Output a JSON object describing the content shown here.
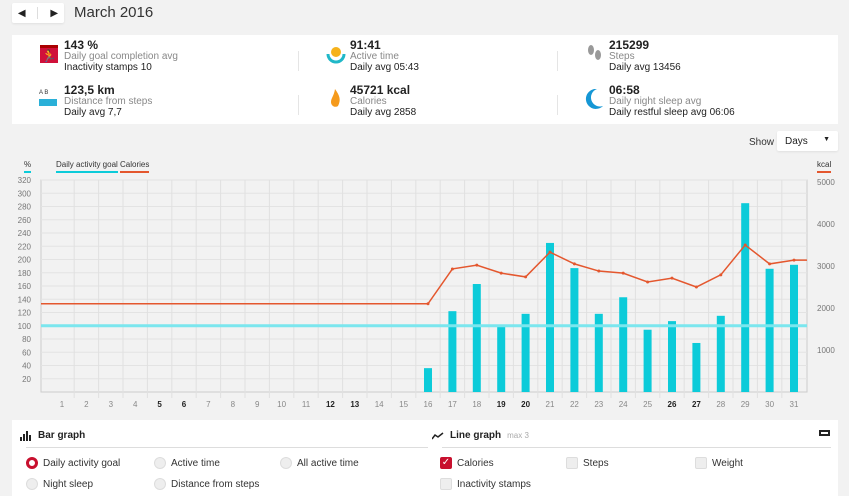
{
  "header": {
    "prev_icon": "◀",
    "next_icon": "▶",
    "month": "March 2016"
  },
  "stats": [
    {
      "icon": "running-calendar-icon",
      "value": "143 %",
      "label": "Daily goal completion avg",
      "detail": "Inactivity stamps 10"
    },
    {
      "icon": "sun-icon",
      "value": "91:41",
      "label": "Active time",
      "detail": "Daily avg 05:43"
    },
    {
      "icon": "footprints-icon",
      "value": "215299",
      "label": "Steps",
      "detail": "Daily avg 13456"
    },
    {
      "icon": "ruler-icon",
      "value": "123,5 km",
      "label": "Distance from steps",
      "detail": "Daily avg 7,7"
    },
    {
      "icon": "flame-icon",
      "value": "45721 kcal",
      "label": "Calories",
      "detail": "Daily avg 2858"
    },
    {
      "icon": "moon-icon",
      "value": "06:58",
      "label": "Daily night sleep avg",
      "detail": "Daily restful sleep avg 06:06"
    }
  ],
  "show": {
    "label": "Show",
    "selected": "Days"
  },
  "chart_data": {
    "type": "bar",
    "left_unit": "%",
    "right_unit": "kcal",
    "legend": [
      "Daily activity goal",
      "Calories"
    ],
    "colors": {
      "bar": "#0ccbd9",
      "goal": "#7be6ee",
      "calories": "#e4572e"
    },
    "categories": [
      1,
      2,
      3,
      4,
      5,
      6,
      7,
      8,
      9,
      10,
      11,
      12,
      13,
      14,
      15,
      16,
      17,
      18,
      19,
      20,
      21,
      22,
      23,
      24,
      25,
      26,
      27,
      28,
      29,
      30,
      31
    ],
    "bold_days": [
      5,
      6,
      12,
      13,
      19,
      20,
      26,
      27
    ],
    "yticks_left": [
      20,
      40,
      60,
      80,
      100,
      120,
      140,
      160,
      180,
      200,
      220,
      240,
      260,
      280,
      300,
      320
    ],
    "yticks_right": [
      1000,
      2000,
      3000,
      4000,
      5000
    ],
    "ylim_left": [
      0,
      320
    ],
    "ylim_right": [
      0,
      5000
    ],
    "goal": 100,
    "series": [
      {
        "name": "Daily activity goal",
        "axis": "left",
        "type": "bar",
        "values": [
          0,
          0,
          0,
          0,
          0,
          0,
          0,
          0,
          0,
          0,
          0,
          0,
          0,
          0,
          0,
          36,
          122,
          163,
          101,
          118,
          225,
          187,
          118,
          143,
          94,
          107,
          74,
          115,
          285,
          186,
          192
        ]
      },
      {
        "name": "Calories",
        "axis": "right",
        "type": "line",
        "values": [
          2100,
          2100,
          2100,
          2100,
          2100,
          2100,
          2100,
          2100,
          2100,
          2100,
          2100,
          2100,
          2100,
          2100,
          2100,
          2100,
          2930,
          3020,
          2830,
          2740,
          3330,
          3050,
          2880,
          2830,
          2620,
          2710,
          2500,
          2790,
          3500,
          3050,
          3140
        ]
      }
    ],
    "grid": true
  },
  "bottom": {
    "bar_title": "Bar graph",
    "line_title": "Line graph",
    "line_max": "max 3",
    "bar_options": [
      {
        "label": "Daily activity goal",
        "selected": true
      },
      {
        "label": "Active time",
        "selected": false
      },
      {
        "label": "All active time",
        "selected": false
      },
      {
        "label": "Night sleep",
        "selected": false
      },
      {
        "label": "Distance from steps",
        "selected": false
      }
    ],
    "line_options": [
      {
        "label": "Calories",
        "checked": true
      },
      {
        "label": "Steps",
        "checked": false
      },
      {
        "label": "Weight",
        "checked": false
      },
      {
        "label": "Inactivity stamps",
        "checked": false
      }
    ]
  }
}
